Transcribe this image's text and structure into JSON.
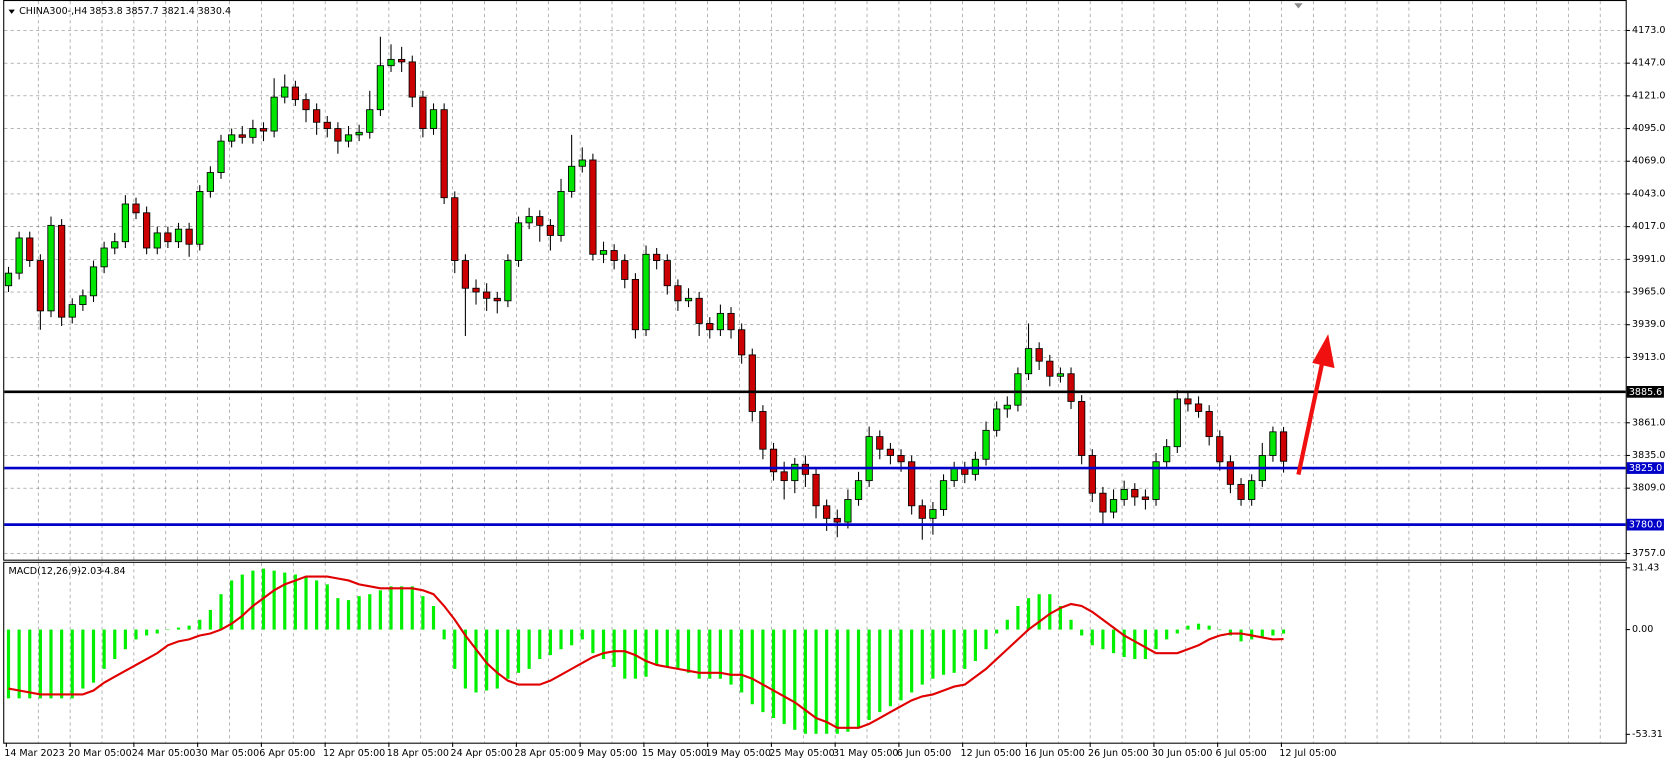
{
  "chart_data": [
    {
      "type": "candlestick",
      "title": "CHINA300-,H4",
      "categories": [
        "14 Mar 2023",
        null,
        null,
        null,
        null,
        null,
        "20 Mar 05:00",
        null,
        null,
        null,
        null,
        null,
        "24 Mar 05:00",
        null,
        null,
        null,
        null,
        null,
        "30 Mar 05:00",
        null,
        null,
        null,
        null,
        null,
        "6 Apr 05:00",
        null,
        null,
        null,
        null,
        null,
        "12 Apr 05:00",
        null,
        null,
        null,
        null,
        null,
        "18 Apr 05:00",
        null,
        null,
        null,
        null,
        null,
        "24 Apr 05:00",
        null,
        null,
        null,
        null,
        null,
        "28 Apr 05:00",
        null,
        null,
        null,
        null,
        null,
        "9 May 05:00",
        null,
        null,
        null,
        null,
        null,
        "15 May 05:00",
        null,
        null,
        null,
        null,
        null,
        "19 May 05:00",
        null,
        null,
        null,
        null,
        null,
        "25 May 05:00",
        null,
        null,
        null,
        null,
        null,
        "31 May 05:00",
        null,
        null,
        null,
        null,
        null,
        "6 Jun 05:00",
        null,
        null,
        null,
        null,
        null,
        "12 Jun 05:00",
        null,
        null,
        null,
        null,
        null,
        "16 Jun 05:00",
        null,
        null,
        null,
        null,
        null,
        "26 Jun 05:00",
        null,
        null,
        null,
        null,
        null,
        "30 Jun 05:00",
        null,
        null,
        null,
        null,
        null,
        "6 Jul 05:00",
        null,
        null,
        null,
        null,
        null,
        "12 Jul 05:00"
      ],
      "ohlc": [
        [
          3970,
          3985,
          3965,
          3980
        ],
        [
          3980,
          4013,
          3975,
          4008
        ],
        [
          4008,
          4013,
          3985,
          3990
        ],
        [
          3990,
          3995,
          3935,
          3950
        ],
        [
          3950,
          4025,
          3945,
          4018
        ],
        [
          4018,
          4023,
          3938,
          3945
        ],
        [
          3945,
          3960,
          3940,
          3955
        ],
        [
          3955,
          3967,
          3950,
          3962
        ],
        [
          3962,
          3990,
          3957,
          3985
        ],
        [
          3985,
          4005,
          3980,
          4000
        ],
        [
          4000,
          4012,
          3995,
          4005
        ],
        [
          4005,
          4042,
          4000,
          4035
        ],
        [
          4035,
          4040,
          4023,
          4028
        ],
        [
          4028,
          4033,
          3995,
          4000
        ],
        [
          4000,
          4017,
          3995,
          4012
        ],
        [
          4012,
          4017,
          4000,
          4005
        ],
        [
          4005,
          4020,
          4000,
          4015
        ],
        [
          4015,
          4020,
          3993,
          4003
        ],
        [
          4003,
          4050,
          3998,
          4045
        ],
        [
          4045,
          4065,
          4040,
          4060
        ],
        [
          4060,
          4090,
          4055,
          4085
        ],
        [
          4085,
          4095,
          4080,
          4090
        ],
        [
          4090,
          4097,
          4083,
          4088
        ],
        [
          4088,
          4102,
          4083,
          4095
        ],
        [
          4095,
          4100,
          4085,
          4093
        ],
        [
          4093,
          4135,
          4088,
          4120
        ],
        [
          4120,
          4138,
          4115,
          4128
        ],
        [
          4128,
          4133,
          4113,
          4118
        ],
        [
          4118,
          4123,
          4100,
          4110
        ],
        [
          4110,
          4115,
          4090,
          4100
        ],
        [
          4100,
          4105,
          4088,
          4095
        ],
        [
          4095,
          4100,
          4075,
          4085
        ],
        [
          4085,
          4097,
          4080,
          4090
        ],
        [
          4090,
          4098,
          4085,
          4092
        ],
        [
          4092,
          4125,
          4087,
          4110
        ],
        [
          4110,
          4168,
          4105,
          4145
        ],
        [
          4145,
          4162,
          4140,
          4150
        ],
        [
          4150,
          4160,
          4140,
          4148
        ],
        [
          4148,
          4153,
          4112,
          4120
        ],
        [
          4120,
          4125,
          4088,
          4095
        ],
        [
          4095,
          4115,
          4090,
          4110
        ],
        [
          4110,
          4115,
          4035,
          4040
        ],
        [
          4040,
          4045,
          3980,
          3990
        ],
        [
          3990,
          3995,
          3930,
          3968
        ],
        [
          3968,
          3975,
          3955,
          3965
        ],
        [
          3965,
          3972,
          3950,
          3960
        ],
        [
          3960,
          3965,
          3948,
          3958
        ],
        [
          3958,
          3995,
          3953,
          3990
        ],
        [
          3990,
          4025,
          3985,
          4020
        ],
        [
          4020,
          4032,
          4015,
          4025
        ],
        [
          4025,
          4030,
          4005,
          4018
        ],
        [
          4018,
          4023,
          3998,
          4010
        ],
        [
          4010,
          4055,
          4005,
          4045
        ],
        [
          4045,
          4090,
          4040,
          4065
        ],
        [
          4065,
          4080,
          4060,
          4070
        ],
        [
          4070,
          4075,
          3990,
          3995
        ],
        [
          3995,
          4005,
          3988,
          3998
        ],
        [
          3998,
          4003,
          3983,
          3990
        ],
        [
          3990,
          3995,
          3968,
          3975
        ],
        [
          3975,
          3980,
          3928,
          3935
        ],
        [
          3935,
          4002,
          3930,
          3995
        ],
        [
          3995,
          4000,
          3983,
          3990
        ],
        [
          3990,
          3995,
          3963,
          3970
        ],
        [
          3970,
          3975,
          3950,
          3958
        ],
        [
          3958,
          3968,
          3953,
          3960
        ],
        [
          3960,
          3965,
          3930,
          3940
        ],
        [
          3940,
          3945,
          3928,
          3935
        ],
        [
          3935,
          3955,
          3930,
          3948
        ],
        [
          3948,
          3953,
          3928,
          3935
        ],
        [
          3935,
          3940,
          3908,
          3915
        ],
        [
          3915,
          3920,
          3862,
          3870
        ],
        [
          3870,
          3875,
          3832,
          3840
        ],
        [
          3840,
          3845,
          3815,
          3822
        ],
        [
          3822,
          3830,
          3800,
          3815
        ],
        [
          3815,
          3833,
          3805,
          3828
        ],
        [
          3828,
          3835,
          3810,
          3820
        ],
        [
          3820,
          3825,
          3785,
          3795
        ],
        [
          3795,
          3800,
          3775,
          3785
        ],
        [
          3785,
          3792,
          3770,
          3782
        ],
        [
          3782,
          3808,
          3777,
          3800
        ],
        [
          3800,
          3822,
          3795,
          3815
        ],
        [
          3815,
          3858,
          3810,
          3850
        ],
        [
          3850,
          3855,
          3832,
          3840
        ],
        [
          3840,
          3845,
          3828,
          3835
        ],
        [
          3835,
          3840,
          3822,
          3830
        ],
        [
          3830,
          3835,
          3788,
          3795
        ],
        [
          3795,
          3800,
          3768,
          3785
        ],
        [
          3785,
          3798,
          3772,
          3792
        ],
        [
          3792,
          3820,
          3787,
          3815
        ],
        [
          3815,
          3830,
          3810,
          3825
        ],
        [
          3825,
          3830,
          3813,
          3820
        ],
        [
          3820,
          3838,
          3815,
          3832
        ],
        [
          3832,
          3862,
          3827,
          3855
        ],
        [
          3855,
          3878,
          3850,
          3872
        ],
        [
          3872,
          3882,
          3865,
          3875
        ],
        [
          3875,
          3905,
          3870,
          3900
        ],
        [
          3900,
          3940,
          3895,
          3920
        ],
        [
          3920,
          3925,
          3903,
          3910
        ],
        [
          3910,
          3915,
          3890,
          3898
        ],
        [
          3898,
          3905,
          3893,
          3900
        ],
        [
          3900,
          3905,
          3872,
          3878
        ],
        [
          3878,
          3883,
          3828,
          3835
        ],
        [
          3835,
          3840,
          3798,
          3805
        ],
        [
          3805,
          3810,
          3780,
          3790
        ],
        [
          3790,
          3808,
          3785,
          3800
        ],
        [
          3800,
          3815,
          3795,
          3808
        ],
        [
          3808,
          3813,
          3795,
          3802
        ],
        [
          3802,
          3808,
          3792,
          3800
        ],
        [
          3800,
          3837,
          3795,
          3830
        ],
        [
          3830,
          3848,
          3825,
          3842
        ],
        [
          3842,
          3887,
          3837,
          3880
        ],
        [
          3880,
          3885,
          3870,
          3876
        ],
        [
          3876,
          3882,
          3865,
          3870
        ],
        [
          3870,
          3875,
          3843,
          3850
        ],
        [
          3850,
          3855,
          3823,
          3830
        ],
        [
          3830,
          3835,
          3805,
          3812
        ],
        [
          3812,
          3817,
          3795,
          3800
        ],
        [
          3800,
          3820,
          3795,
          3815
        ],
        [
          3815,
          3845,
          3810,
          3835
        ],
        [
          3835,
          3858,
          3830,
          3853.8
        ],
        [
          3853.8,
          3857.7,
          3821.4,
          3830.4
        ]
      ],
      "up_color": "#00e600",
      "down_color": "#cc0000",
      "ylim": [
        3753,
        4182
      ],
      "yticks": [
        {
          "value": 4173,
          "label": "4173.0"
        },
        {
          "value": 4147,
          "label": "4147.0"
        },
        {
          "value": 4121,
          "label": "4121.0"
        },
        {
          "value": 4095,
          "label": "4095.0"
        },
        {
          "value": 4069,
          "label": "4069.0"
        },
        {
          "value": 4043,
          "label": "4043.0"
        },
        {
          "value": 4017,
          "label": "4017.0"
        },
        {
          "value": 3991,
          "label": "3991.0"
        },
        {
          "value": 3965,
          "label": "3965.0"
        },
        {
          "value": 3939,
          "label": "3939.0"
        },
        {
          "value": 3913,
          "label": "3913.0"
        },
        {
          "value": 3861,
          "label": "3861.0"
        },
        {
          "value": 3835,
          "label": "3835.0"
        },
        {
          "value": 3809,
          "label": "3809.0"
        },
        {
          "value": 3757,
          "label": "3757.0"
        }
      ],
      "hlines": [
        {
          "value": 3885.6,
          "color": "#000000"
        },
        {
          "value": 3825,
          "label": "3825.0",
          "color": "#0000c8"
        },
        {
          "value": 3780,
          "label": "3780.0",
          "color": "#0000c8"
        }
      ],
      "grid": true
    },
    {
      "type": "macd",
      "title": "MACD(12,26,9)",
      "histogram": [
        -35,
        -35,
        -35,
        -35,
        -35,
        -35,
        -35,
        -30,
        -27,
        -20,
        -15,
        -10,
        -5,
        -3,
        -2,
        0,
        1,
        2,
        5,
        10,
        18,
        25,
        28,
        30,
        31,
        30,
        29,
        28,
        27,
        25,
        23,
        16,
        15,
        17,
        18,
        20,
        22,
        22,
        22,
        17,
        12,
        -5,
        -20,
        -30,
        -32,
        -31,
        -30,
        -25,
        -22,
        -20,
        -15,
        -13,
        -10,
        -8,
        -5,
        -12,
        -15,
        -19,
        -25,
        -25,
        -24,
        -18,
        -19,
        -20,
        -22,
        -25,
        -25,
        -25,
        -28,
        -32,
        -38,
        -42,
        -45,
        -48,
        -51,
        -53,
        -53,
        -53,
        -53,
        -52,
        -50,
        -46,
        -42,
        -39,
        -36,
        -32,
        -28,
        -25,
        -23,
        -22,
        -20,
        -16,
        -10,
        -2,
        5,
        12,
        16,
        18,
        18,
        12,
        5,
        -3,
        -8,
        -10,
        -12,
        -14,
        -15,
        -15,
        -10,
        -5,
        -2,
        2,
        3,
        2,
        0,
        -3,
        -6,
        -5,
        -4,
        -3,
        -2.03
      ],
      "signal": [
        -30,
        -31,
        -32,
        -33,
        -33,
        -33,
        -33,
        -33,
        -31,
        -27,
        -24,
        -21,
        -18,
        -15,
        -12,
        -8,
        -6,
        -5,
        -3,
        -2,
        0,
        3,
        7,
        12,
        16,
        20,
        23,
        25,
        27,
        27,
        27,
        26,
        25,
        23,
        22,
        21,
        21,
        21,
        21,
        20,
        18,
        12,
        5,
        -3,
        -10,
        -17,
        -22,
        -26,
        -28,
        -28,
        -28,
        -26,
        -23,
        -20,
        -17,
        -14,
        -12,
        -11,
        -11,
        -13,
        -16,
        -18,
        -19,
        -20,
        -21,
        -22,
        -22,
        -22,
        -23,
        -23,
        -25,
        -28,
        -31,
        -34,
        -37,
        -41,
        -45,
        -47,
        -50,
        -50,
        -50,
        -48,
        -45,
        -42,
        -39,
        -36,
        -34,
        -33,
        -31,
        -29,
        -28,
        -24,
        -20,
        -15,
        -10,
        -5,
        0,
        4,
        8,
        11,
        13,
        12,
        9,
        5,
        1,
        -3,
        -6,
        -9,
        -12,
        -12,
        -12,
        -10,
        -8,
        -5,
        -3,
        -2,
        -2,
        -3,
        -4,
        -5,
        -4.84
      ],
      "hist_color": "#00f000",
      "signal_color": "#e00000",
      "ylim": [
        -57,
        34.5
      ],
      "yticks": [
        31.43,
        {
          "value": 0,
          "label": "0.00"
        },
        -53.31
      ]
    }
  ]
}
